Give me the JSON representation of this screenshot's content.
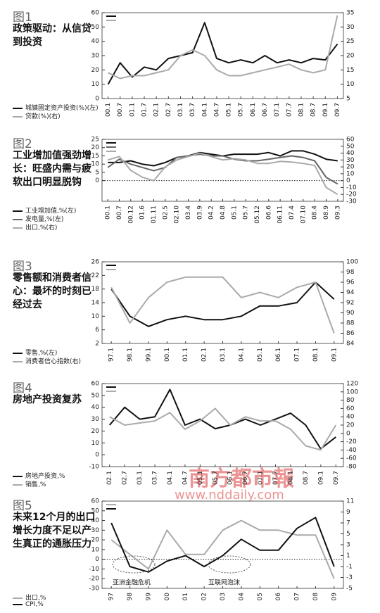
{
  "chart_data": [
    {
      "type": "line",
      "title": "图1",
      "subtitle": "政策驱动：从信贷到投资",
      "categories": [
        "00.1",
        "00.7",
        "01.1",
        "01.7",
        "02.1",
        "02.7",
        "03.1",
        "03.7",
        "04.1",
        "04.7",
        "05.1",
        "05.7",
        "06.1",
        "06.7",
        "07.1",
        "07.7",
        "08.1",
        "08.7",
        "09.1",
        "09.7"
      ],
      "series": [
        {
          "name": "城镇固定资产投资(%)(左)",
          "color": "#111111",
          "values": [
            10,
            25,
            15,
            22,
            20,
            28,
            30,
            32,
            53,
            28,
            25,
            27,
            25,
            30,
            25,
            27,
            25,
            28,
            27,
            38
          ]
        },
        {
          "name": "贷款(%)(右)",
          "color": "#aaaaaa",
          "axis": "y2",
          "values": [
            14,
            12,
            13,
            13,
            14,
            15,
            20,
            22,
            20,
            15,
            13,
            13,
            14,
            15,
            16,
            17,
            15,
            14,
            15,
            34
          ]
        }
      ],
      "ylim": [
        0,
        60
      ],
      "yticks": [
        0,
        10,
        20,
        30,
        40,
        50,
        60
      ],
      "y2lim": [
        5,
        35
      ],
      "y2ticks": [
        5,
        10,
        15,
        20,
        25,
        30,
        35
      ]
    },
    {
      "type": "line",
      "title": "图2",
      "subtitle": "工业增加值强劲增长：旺盛内需与疲软出口明显脱钩",
      "categories": [
        "00.1",
        "00.7",
        "00.12",
        "01.6",
        "01.11",
        "02.5",
        "02.10",
        "03.4",
        "03.9",
        "04.2",
        "04.8",
        "05.1",
        "05.7",
        "05.12",
        "06.6",
        "06.11",
        "07.4",
        "07.10",
        "08.4",
        "08.9",
        "09.3"
      ],
      "series": [
        {
          "name": "工业增加值,%(左)",
          "color": "#111111",
          "values": [
            11,
            11,
            12,
            10,
            9,
            11,
            14,
            15,
            17,
            16,
            15,
            16,
            16,
            16,
            17,
            15,
            18,
            18,
            16,
            13,
            12
          ]
        },
        {
          "name": "发电量,%(左)",
          "color": "#666666",
          "values": [
            8,
            13,
            10,
            8,
            6,
            8,
            14,
            15,
            16,
            15,
            15,
            13,
            12,
            12,
            13,
            14,
            15,
            14,
            12,
            2,
            -2
          ]
        },
        {
          "name": "出口,%(右)",
          "color": "#aaaaaa",
          "axis": "y2",
          "values": [
            30,
            35,
            15,
            5,
            0,
            20,
            30,
            35,
            40,
            35,
            30,
            32,
            30,
            25,
            25,
            28,
            27,
            25,
            22,
            -10,
            -20
          ]
        }
      ],
      "ylim": [
        -12.5,
        25
      ],
      "yticks": [
        0,
        5,
        10,
        15,
        20,
        25
      ],
      "y2lim": [
        -30,
        60
      ],
      "y2ticks": [
        -30,
        -20,
        -10,
        0,
        10,
        20,
        30,
        40,
        50,
        60
      ],
      "zero_line": true
    },
    {
      "type": "line",
      "title": "图3",
      "subtitle": "零售额和消费者信心：最坏的时刻已经过去",
      "categories": [
        "97.1",
        "98.1",
        "99.1",
        "00.1",
        "01.1",
        "02.1",
        "03.1",
        "04.1",
        "05.1",
        "06.1",
        "07.1",
        "08.1",
        "09.1"
      ],
      "series": [
        {
          "name": "零售,%(左)",
          "color": "#111111",
          "values": [
            18,
            10,
            7,
            9,
            10,
            9,
            9,
            10,
            13,
            13,
            14,
            20,
            15
          ]
        },
        {
          "name": "消费者信心指数(右)",
          "color": "#aaaaaa",
          "axis": "y2",
          "values": [
            95,
            88,
            93,
            96,
            97,
            97,
            97,
            93,
            94,
            93,
            95,
            96,
            86
          ]
        }
      ],
      "ylim": [
        2,
        26
      ],
      "yticks": [
        2,
        6,
        10,
        14,
        18,
        22,
        26
      ],
      "y2lim": [
        84,
        100
      ],
      "y2ticks": [
        84,
        86,
        88,
        90,
        92,
        94,
        96,
        98,
        100
      ]
    },
    {
      "type": "line",
      "title": "图4",
      "subtitle": "房地产投资复苏",
      "categories": [
        "02.1",
        "02.7",
        "03.1",
        "03.7",
        "04.1",
        "04.7",
        "05.1",
        "05.7",
        "06.1",
        "06.7",
        "07.1",
        "07.7",
        "08.1",
        "08.7",
        "09.1",
        "09.7"
      ],
      "series": [
        {
          "name": "房地产投资,%",
          "color": "#111111",
          "values": [
            25,
            40,
            30,
            32,
            55,
            25,
            30,
            22,
            25,
            30,
            25,
            30,
            35,
            25,
            5,
            15
          ]
        },
        {
          "name": "销售,%",
          "color": "#aaaaaa",
          "axis": "y2",
          "values": [
            40,
            20,
            25,
            30,
            50,
            10,
            30,
            60,
            20,
            40,
            30,
            30,
            10,
            -30,
            -40,
            20
          ]
        }
      ],
      "ylim": [
        -10,
        60
      ],
      "yticks": [
        -10,
        0,
        10,
        20,
        30,
        40,
        50,
        60
      ],
      "y2lim": [
        -80,
        120
      ],
      "y2ticks": [
        -80,
        -60,
        -40,
        -20,
        0,
        20,
        40,
        60,
        80,
        100,
        120
      ]
    },
    {
      "type": "line",
      "title": "图5",
      "subtitle": "未来12个月的出口增长力度不足以产生真正的通胀压力",
      "categories": [
        "97",
        "98",
        "99",
        "00",
        "01",
        "02",
        "03",
        "04",
        "05",
        "06",
        "07",
        "08",
        "09"
      ],
      "series": [
        {
          "name": "出口,%",
          "color": "#aaaaaa",
          "values": [
            20,
            5,
            -10,
            30,
            5,
            5,
            30,
            40,
            30,
            30,
            25,
            25,
            -20
          ]
        },
        {
          "name": "CPI,%",
          "color": "#111111",
          "axis": "y2",
          "values": [
            7,
            -1,
            -2,
            0,
            1,
            -1,
            1,
            4,
            2,
            2,
            6,
            8,
            -1
          ]
        }
      ],
      "ylim": [
        -30,
        60
      ],
      "yticks": [
        -30,
        -20,
        -10,
        0,
        10,
        20,
        30,
        40,
        50,
        60
      ],
      "y2lim": [
        -5,
        11
      ],
      "y2ticks": [
        -5,
        -3,
        -1,
        1,
        3,
        5,
        7,
        9,
        11
      ],
      "zero_line": true,
      "annotations": [
        "亚洲金融危机",
        "互联网泡沫"
      ]
    }
  ],
  "watermark": {
    "name": "南方都市報",
    "url": "www.nddaily.com"
  }
}
